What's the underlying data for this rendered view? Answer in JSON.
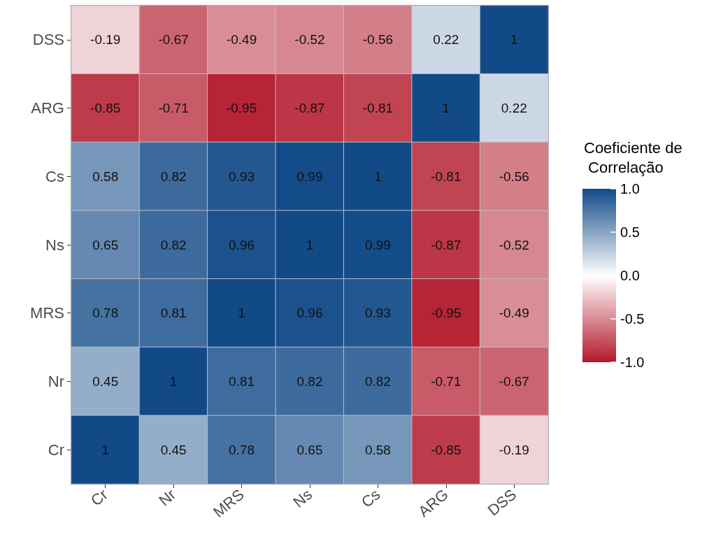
{
  "chart_data": {
    "type": "heatmap",
    "legend_title": "Coeficiente de\n Correlação",
    "categories": [
      "Cr",
      "Nr",
      "MRS",
      "Ns",
      "Cs",
      "ARG",
      "DSS"
    ],
    "y_categories": [
      "DSS",
      "ARG",
      "Cs",
      "Ns",
      "MRS",
      "Nr",
      "Cr"
    ],
    "cells": [
      [
        -0.19,
        -0.67,
        -0.49,
        -0.52,
        -0.56,
        0.22,
        1
      ],
      [
        -0.85,
        -0.71,
        -0.95,
        -0.87,
        -0.81,
        1,
        0.22
      ],
      [
        0.58,
        0.82,
        0.93,
        0.99,
        1,
        -0.81,
        -0.56
      ],
      [
        0.65,
        0.82,
        0.96,
        1,
        0.99,
        -0.87,
        -0.52
      ],
      [
        0.78,
        0.81,
        1,
        0.96,
        0.93,
        -0.95,
        -0.49
      ],
      [
        0.45,
        1,
        0.81,
        0.82,
        0.82,
        -0.71,
        -0.67
      ],
      [
        1,
        0.45,
        0.78,
        0.65,
        0.58,
        -0.85,
        -0.19
      ]
    ],
    "colors": [
      "#b2182b",
      "#ffffff",
      "#124a88"
    ],
    "clim": [
      -1,
      1
    ],
    "cticks": [
      {
        "value": -1,
        "label": "-1.0"
      },
      {
        "value": -0.5,
        "label": "-0.5"
      },
      {
        "value": 0,
        "label": "0.0"
      },
      {
        "value": 0.5,
        "label": "0.5"
      },
      {
        "value": 1,
        "label": "1.0"
      }
    ],
    "data_labels": true
  }
}
